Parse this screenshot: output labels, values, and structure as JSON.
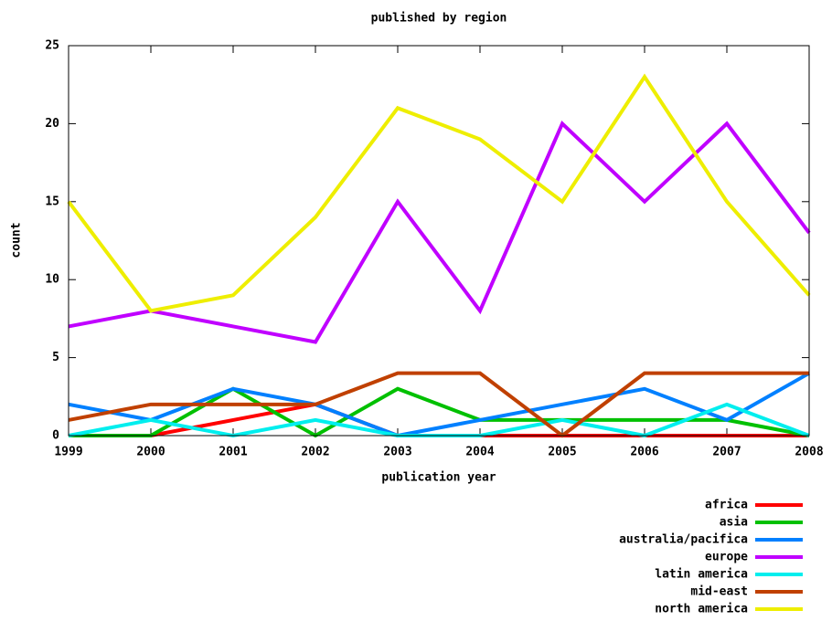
{
  "chart_data": {
    "type": "line",
    "title": "published by region",
    "x_label": "publication year",
    "y_label": "count",
    "x": [
      1999,
      2000,
      2001,
      2002,
      2003,
      2004,
      2005,
      2006,
      2007,
      2008
    ],
    "xlim": [
      1999,
      2008
    ],
    "xticks": [
      1999,
      2000,
      2001,
      2002,
      2003,
      2004,
      2005,
      2006,
      2007,
      2008
    ],
    "ylim": [
      0,
      25
    ],
    "yticks": [
      0,
      5,
      10,
      15,
      20,
      25
    ],
    "grid": false,
    "legend": "bottom-right",
    "series": [
      {
        "name": "africa",
        "color": "#ff0000",
        "values": [
          0,
          0,
          1,
          2,
          0,
          0,
          0,
          0,
          0,
          0
        ]
      },
      {
        "name": "asia",
        "color": "#00c000",
        "values": [
          0,
          0,
          3,
          0,
          3,
          1,
          1,
          1,
          1,
          0
        ]
      },
      {
        "name": "australia/pacifica",
        "color": "#0080ff",
        "values": [
          2,
          1,
          3,
          2,
          0,
          1,
          2,
          3,
          1,
          4
        ]
      },
      {
        "name": "europe",
        "color": "#c000ff",
        "values": [
          7,
          8,
          7,
          6,
          15,
          8,
          20,
          15,
          20,
          13
        ]
      },
      {
        "name": "latin america",
        "color": "#00eeee",
        "values": [
          0,
          1,
          0,
          1,
          0,
          0,
          1,
          0,
          2,
          0
        ]
      },
      {
        "name": "mid-east",
        "color": "#c04000",
        "values": [
          1,
          2,
          2,
          2,
          4,
          4,
          0,
          4,
          4,
          4
        ]
      },
      {
        "name": "north america",
        "color": "#eeee00",
        "values": [
          15,
          8,
          9,
          14,
          21,
          19,
          15,
          23,
          15,
          9
        ]
      }
    ]
  }
}
